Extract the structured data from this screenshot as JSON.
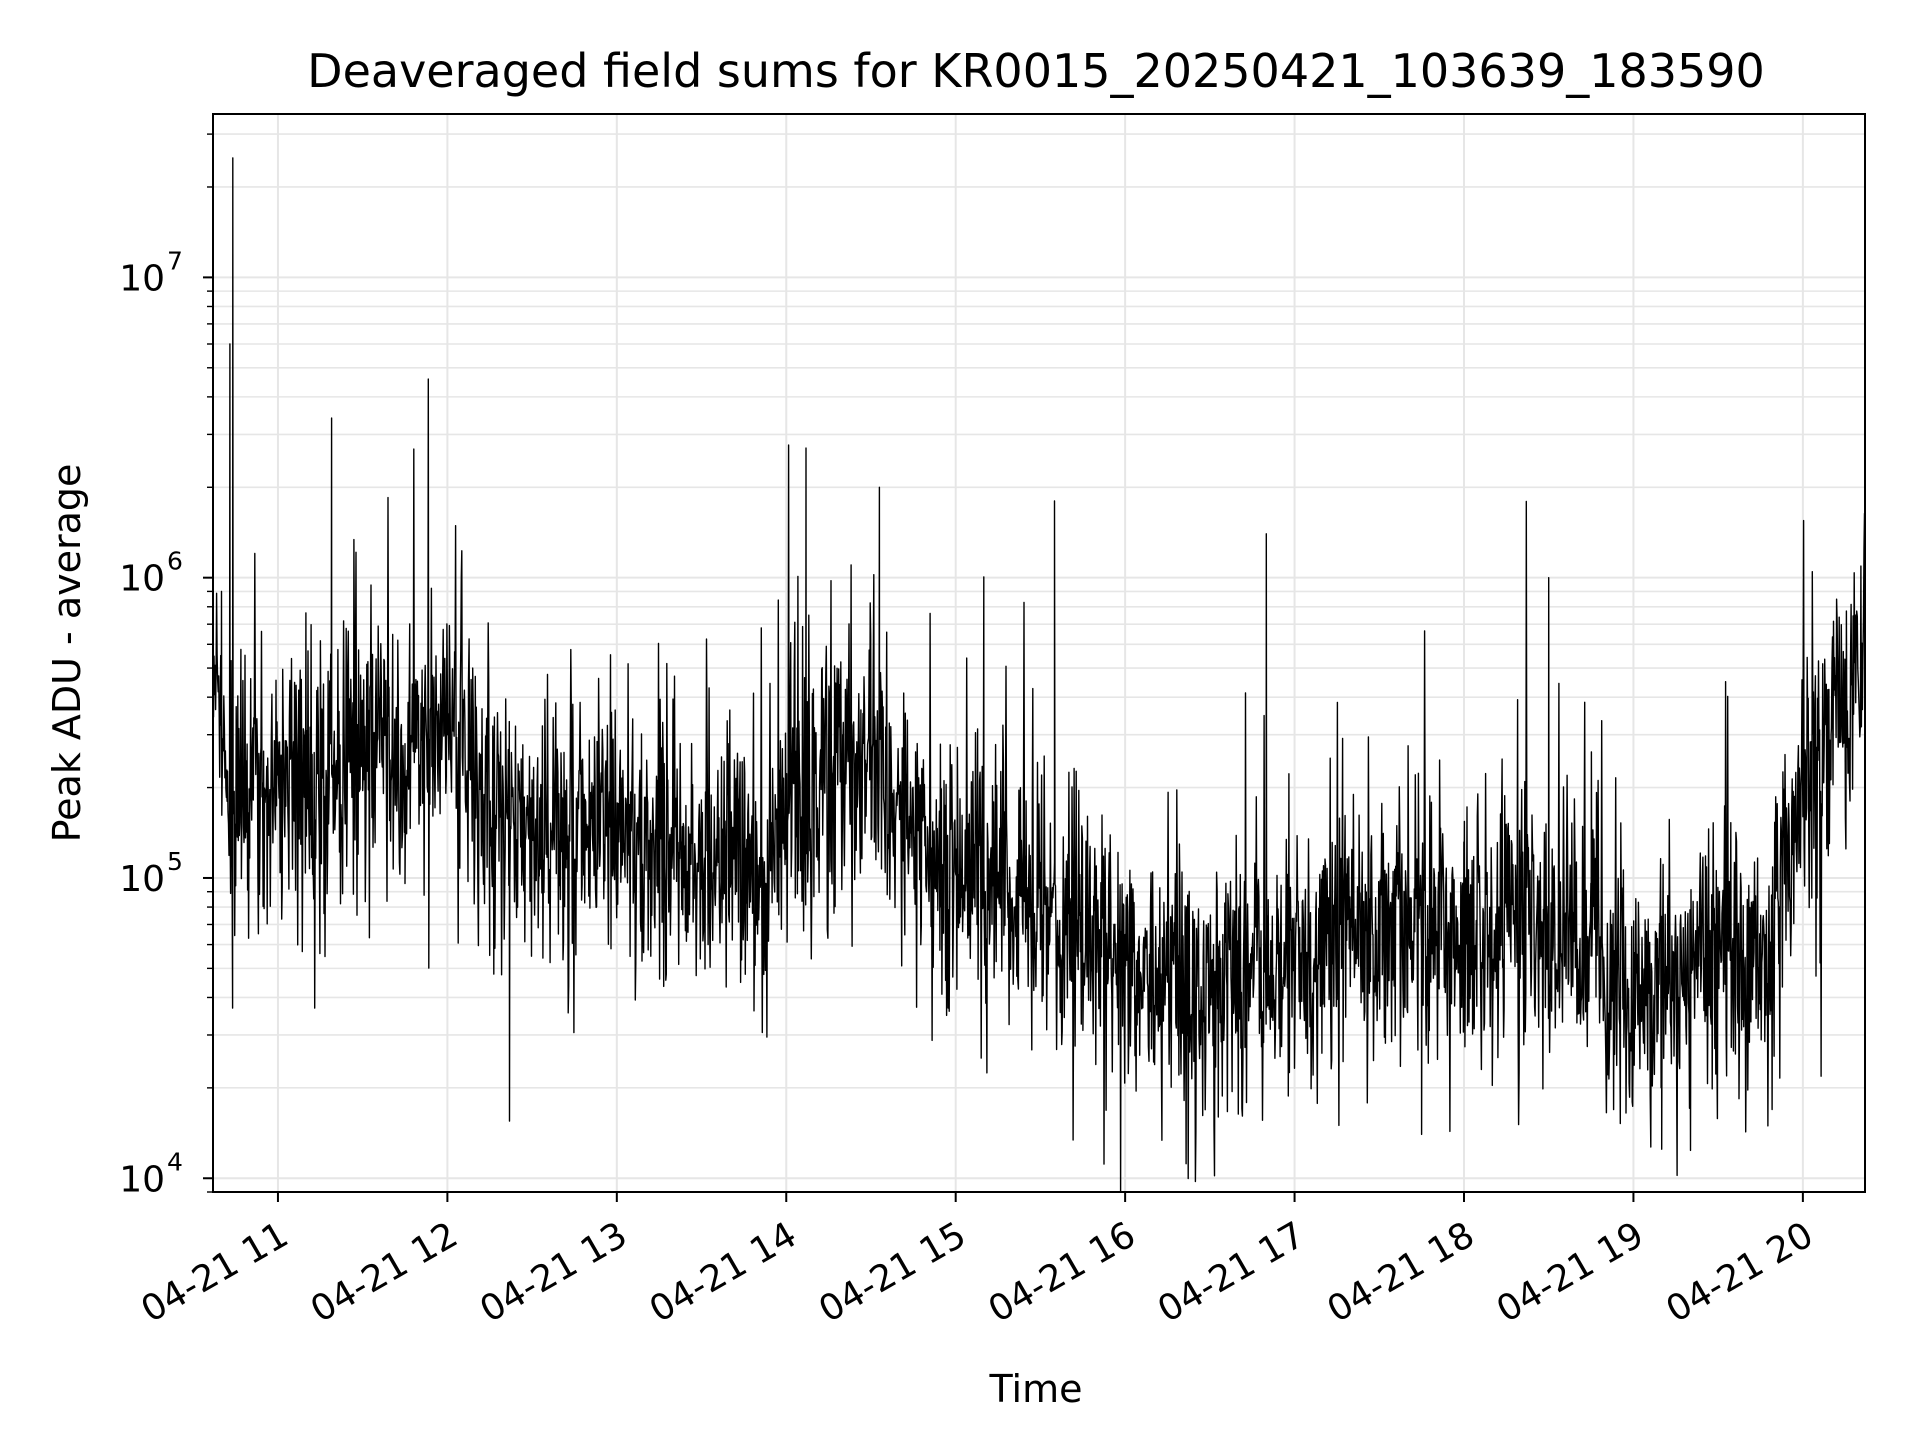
{
  "chart_data": {
    "type": "line",
    "title": "Deaveraged field sums for KR0015_20250421_103639_183590",
    "xlabel": "Time",
    "ylabel": "Peak ADU - average",
    "yscale": "log",
    "ylim": [
      9000,
      35000000
    ],
    "xlim": [
      "2025-04-21 10:37",
      "2025-04-21 20:22"
    ],
    "grid": true,
    "line_color": "#000000",
    "grid_color": "#e6e6e6",
    "x_ticks": [
      "04-21 11",
      "04-21 12",
      "04-21 13",
      "04-21 14",
      "04-21 15",
      "04-21 16",
      "04-21 17",
      "04-21 18",
      "04-21 19",
      "04-21 20"
    ],
    "y_ticks": [
      {
        "base": "10",
        "exp": "4",
        "value": 10000
      },
      {
        "base": "10",
        "exp": "5",
        "value": 100000
      },
      {
        "base": "10",
        "exp": "6",
        "value": 1000000
      },
      {
        "base": "10",
        "exp": "7",
        "value": 10000000
      }
    ],
    "series": [
      {
        "x": [
          "2025-04-21 10:37",
          "2025-04-21 10:40",
          "2025-04-21 10:42",
          "2025-04-21 10:43",
          "2025-04-21 10:44",
          "2025-04-21 10:47",
          "2025-04-21 10:50",
          "2025-04-21 11:00",
          "2025-04-21 11:10",
          "2025-04-21 11:19",
          "2025-04-21 11:30",
          "2025-04-21 11:45",
          "2025-04-21 12:00",
          "2025-04-21 12:15",
          "2025-04-21 12:22",
          "2025-04-21 12:35",
          "2025-04-21 12:53",
          "2025-04-21 13:15",
          "2025-04-21 13:30",
          "2025-04-21 13:50",
          "2025-04-21 14:07",
          "2025-04-21 14:20",
          "2025-04-21 14:33",
          "2025-04-21 14:50",
          "2025-04-21 15:10",
          "2025-04-21 15:35",
          "2025-04-21 15:55",
          "2025-04-21 16:15",
          "2025-04-21 16:33",
          "2025-04-21 16:50",
          "2025-04-21 17:10",
          "2025-04-21 17:25",
          "2025-04-21 17:45",
          "2025-04-21 18:00",
          "2025-04-21 18:15",
          "2025-04-21 18:30",
          "2025-04-21 18:45",
          "2025-04-21 19:00",
          "2025-04-21 19:10",
          "2025-04-21 19:30",
          "2025-04-21 19:45",
          "2025-04-21 20:00",
          "2025-04-21 20:10",
          "2025-04-21 20:22"
        ],
        "y": [
          550000,
          900000,
          180000,
          6000000,
          25000000,
          200000,
          180000,
          220000,
          200000,
          3400000,
          260000,
          280000,
          300000,
          180000,
          15500,
          120000,
          140000,
          130000,
          120000,
          110000,
          2700000,
          300000,
          2000000,
          130000,
          110000,
          1800000,
          60000,
          45000,
          16000,
          1400000,
          55000,
          70000,
          14000,
          60000,
          80000,
          1000000,
          55000,
          40000,
          12500,
          60000,
          45000,
          160000,
          300000,
          700000
        ]
      }
    ]
  }
}
